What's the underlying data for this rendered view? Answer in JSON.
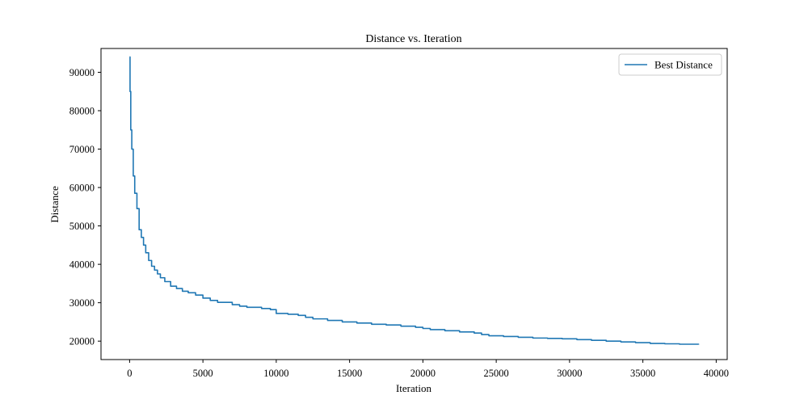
{
  "chart_data": {
    "type": "line",
    "title": "Distance vs. Iteration",
    "xlabel": "Iteration",
    "ylabel": "Distance",
    "xlim": [
      -1950,
      40750
    ],
    "ylim": [
      15200,
      96200
    ],
    "xticks": [
      0,
      5000,
      10000,
      15000,
      20000,
      25000,
      30000,
      35000,
      40000
    ],
    "yticks": [
      20000,
      30000,
      40000,
      50000,
      60000,
      70000,
      80000,
      90000
    ],
    "grid": false,
    "legend": {
      "placement": "top-right"
    },
    "series": [
      {
        "name": "Best Distance",
        "color": "#1f77b4",
        "x": [
          0,
          30,
          80,
          150,
          250,
          350,
          500,
          650,
          800,
          950,
          1100,
          1300,
          1500,
          1700,
          1900,
          2100,
          2400,
          2800,
          3200,
          3600,
          4000,
          4500,
          5000,
          5500,
          6000,
          7000,
          7500,
          8000,
          9000,
          9600,
          10000,
          10800,
          11500,
          12000,
          12500,
          13500,
          14500,
          15500,
          16500,
          17500,
          18500,
          19500,
          20000,
          20500,
          21500,
          22500,
          23500,
          24000,
          24500,
          25500,
          26500,
          27500,
          28500,
          29500,
          30500,
          31500,
          32500,
          33500,
          34500,
          35500,
          36500,
          37500,
          38800
        ],
        "y": [
          94000,
          85000,
          75000,
          70000,
          63000,
          58500,
          54500,
          49000,
          47000,
          45000,
          43000,
          41000,
          39500,
          38500,
          37500,
          36500,
          35500,
          34300,
          33700,
          33000,
          32600,
          32000,
          31200,
          30600,
          30100,
          29500,
          29100,
          28800,
          28500,
          28200,
          27200,
          27000,
          26700,
          26200,
          25800,
          25400,
          25000,
          24700,
          24400,
          24200,
          23900,
          23600,
          23300,
          23000,
          22700,
          22400,
          22100,
          21700,
          21400,
          21200,
          21000,
          20800,
          20700,
          20600,
          20400,
          20200,
          20000,
          19800,
          19600,
          19400,
          19300,
          19200,
          19100
        ]
      }
    ]
  }
}
